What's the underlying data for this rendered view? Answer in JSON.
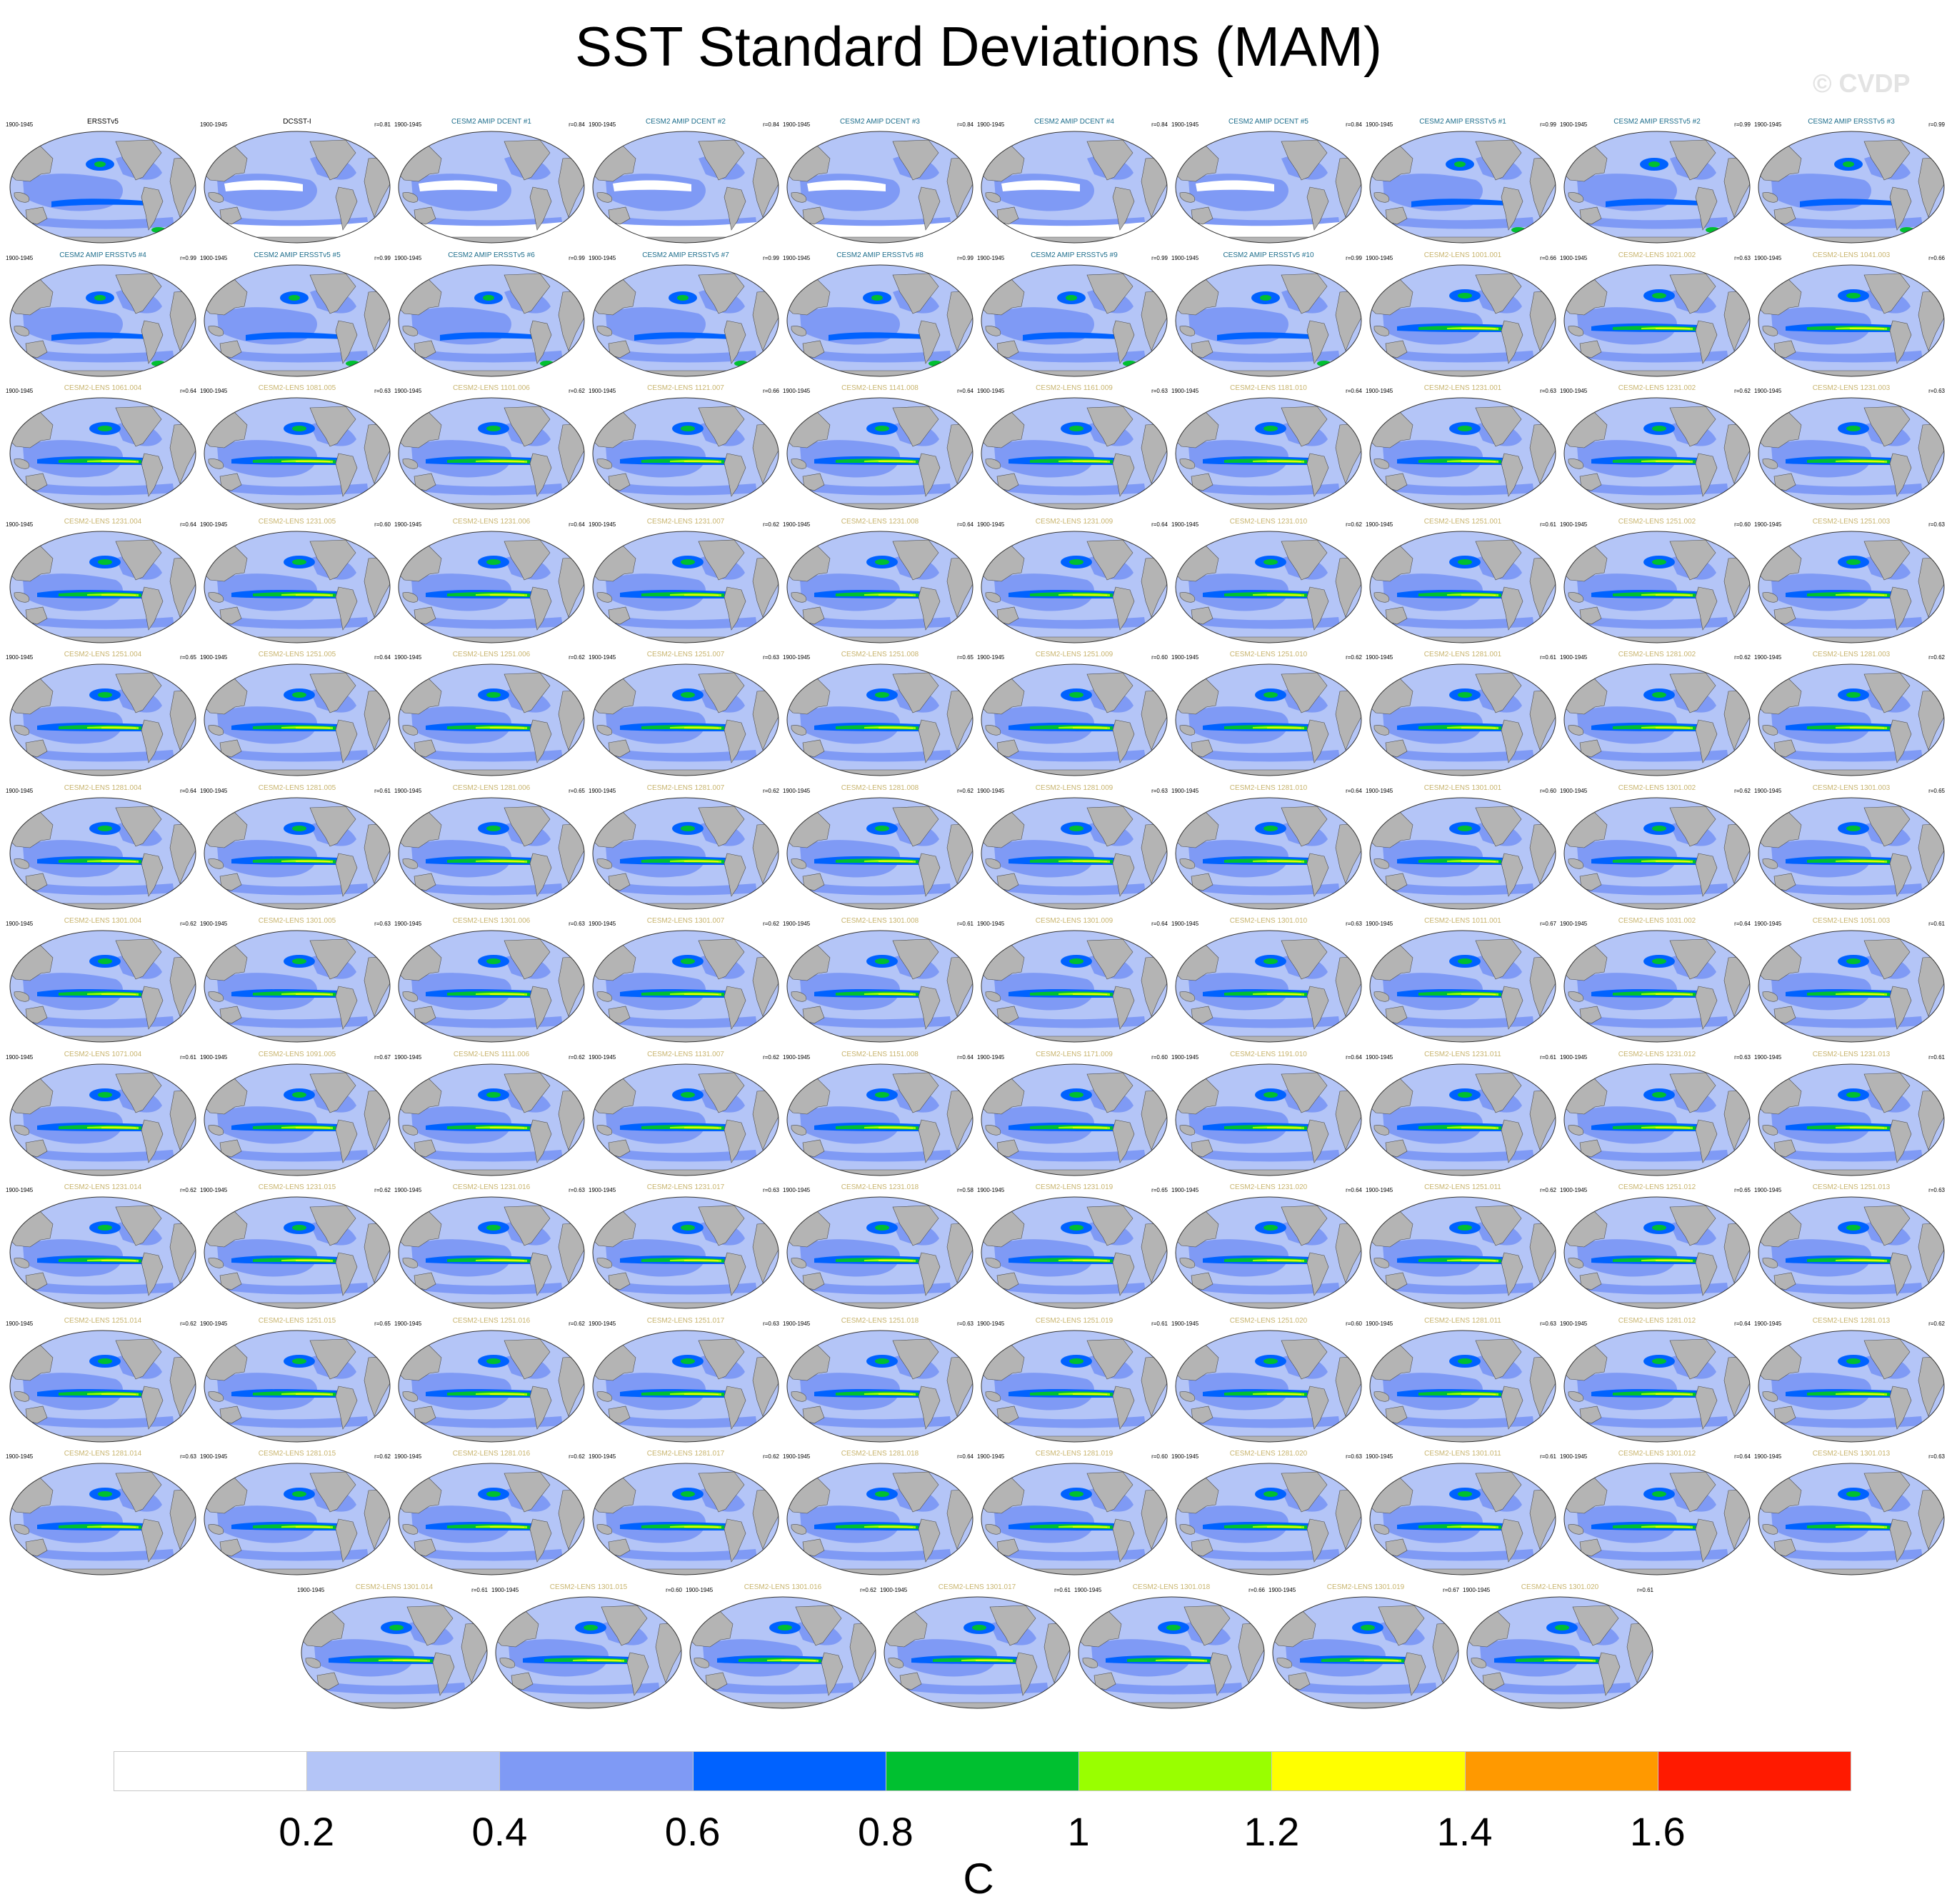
{
  "title": "SST Standard Deviations (MAM)",
  "watermark": "© CVDP",
  "chart_data": {
    "type": "heatmap",
    "title": "SST Standard Deviations (MAM)",
    "units": "C",
    "colorbar": {
      "levels": [
        0.2,
        0.4,
        0.6,
        0.8,
        1,
        1.2,
        1.4,
        1.6
      ],
      "tick_labels": [
        "0.2",
        "0.4",
        "0.6",
        "0.8",
        "1",
        "1.2",
        "1.4",
        "1.6"
      ],
      "colors": [
        "#ffffff",
        "#b4c5f7",
        "#7f9af5",
        "#0062ff",
        "#00c030",
        "#99ff00",
        "#ffff00",
        "#ff9900",
        "#ff1a00"
      ]
    },
    "land_color": "#b4b4b4",
    "title_colors": {
      "obs": "#000000",
      "amip": "#1e6e8c",
      "lens": "#c8b46e"
    },
    "panels": [
      {
        "name": "ERSSTv5",
        "period": "1900-1945",
        "r": "",
        "group": "obs"
      },
      {
        "name": "DCSST-I",
        "period": "1900-1945",
        "r": "r=0.81",
        "group": "obs"
      },
      {
        "name": "CESM2 AMIP DCENT #1",
        "period": "1900-1945",
        "r": "r=0.84",
        "group": "amip"
      },
      {
        "name": "CESM2 AMIP DCENT #2",
        "period": "1900-1945",
        "r": "r=0.84",
        "group": "amip"
      },
      {
        "name": "CESM2 AMIP DCENT #3",
        "period": "1900-1945",
        "r": "r=0.84",
        "group": "amip"
      },
      {
        "name": "CESM2 AMIP DCENT #4",
        "period": "1900-1945",
        "r": "r=0.84",
        "group": "amip"
      },
      {
        "name": "CESM2 AMIP DCENT #5",
        "period": "1900-1945",
        "r": "r=0.84",
        "group": "amip"
      },
      {
        "name": "CESM2 AMIP ERSSTv5 #1",
        "period": "1900-1945",
        "r": "r=0.99",
        "group": "amip"
      },
      {
        "name": "CESM2 AMIP ERSSTv5 #2",
        "period": "1900-1945",
        "r": "r=0.99",
        "group": "amip"
      },
      {
        "name": "CESM2 AMIP ERSSTv5 #3",
        "period": "1900-1945",
        "r": "r=0.99",
        "group": "amip"
      },
      {
        "name": "CESM2 AMIP ERSSTv5 #4",
        "period": "1900-1945",
        "r": "r=0.99",
        "group": "amip"
      },
      {
        "name": "CESM2 AMIP ERSSTv5 #5",
        "period": "1900-1945",
        "r": "r=0.99",
        "group": "amip"
      },
      {
        "name": "CESM2 AMIP ERSSTv5 #6",
        "period": "1900-1945",
        "r": "r=0.99",
        "group": "amip"
      },
      {
        "name": "CESM2 AMIP ERSSTv5 #7",
        "period": "1900-1945",
        "r": "r=0.99",
        "group": "amip"
      },
      {
        "name": "CESM2 AMIP ERSSTv5 #8",
        "period": "1900-1945",
        "r": "r=0.99",
        "group": "amip"
      },
      {
        "name": "CESM2 AMIP ERSSTv5 #9",
        "period": "1900-1945",
        "r": "r=0.99",
        "group": "amip"
      },
      {
        "name": "CESM2 AMIP ERSSTv5 #10",
        "period": "1900-1945",
        "r": "r=0.99",
        "group": "amip"
      },
      {
        "name": "CESM2-LENS 1001.001",
        "period": "1900-1945",
        "r": "r=0.66",
        "group": "lens"
      },
      {
        "name": "CESM2-LENS 1021.002",
        "period": "1900-1945",
        "r": "r=0.63",
        "group": "lens"
      },
      {
        "name": "CESM2-LENS 1041.003",
        "period": "1900-1945",
        "r": "r=0.66",
        "group": "lens"
      },
      {
        "name": "CESM2-LENS 1061.004",
        "period": "1900-1945",
        "r": "r=0.64",
        "group": "lens"
      },
      {
        "name": "CESM2-LENS 1081.005",
        "period": "1900-1945",
        "r": "r=0.63",
        "group": "lens"
      },
      {
        "name": "CESM2-LENS 1101.006",
        "period": "1900-1945",
        "r": "r=0.62",
        "group": "lens"
      },
      {
        "name": "CESM2-LENS 1121.007",
        "period": "1900-1945",
        "r": "r=0.66",
        "group": "lens"
      },
      {
        "name": "CESM2-LENS 1141.008",
        "period": "1900-1945",
        "r": "r=0.64",
        "group": "lens"
      },
      {
        "name": "CESM2-LENS 1161.009",
        "period": "1900-1945",
        "r": "r=0.63",
        "group": "lens"
      },
      {
        "name": "CESM2-LENS 1181.010",
        "period": "1900-1945",
        "r": "r=0.64",
        "group": "lens"
      },
      {
        "name": "CESM2-LENS 1231.001",
        "period": "1900-1945",
        "r": "r=0.63",
        "group": "lens"
      },
      {
        "name": "CESM2-LENS 1231.002",
        "period": "1900-1945",
        "r": "r=0.62",
        "group": "lens"
      },
      {
        "name": "CESM2-LENS 1231.003",
        "period": "1900-1945",
        "r": "r=0.63",
        "group": "lens"
      },
      {
        "name": "CESM2-LENS 1231.004",
        "period": "1900-1945",
        "r": "r=0.64",
        "group": "lens"
      },
      {
        "name": "CESM2-LENS 1231.005",
        "period": "1900-1945",
        "r": "r=0.60",
        "group": "lens"
      },
      {
        "name": "CESM2-LENS 1231.006",
        "period": "1900-1945",
        "r": "r=0.64",
        "group": "lens"
      },
      {
        "name": "CESM2-LENS 1231.007",
        "period": "1900-1945",
        "r": "r=0.62",
        "group": "lens"
      },
      {
        "name": "CESM2-LENS 1231.008",
        "period": "1900-1945",
        "r": "r=0.64",
        "group": "lens"
      },
      {
        "name": "CESM2-LENS 1231.009",
        "period": "1900-1945",
        "r": "r=0.64",
        "group": "lens"
      },
      {
        "name": "CESM2-LENS 1231.010",
        "period": "1900-1945",
        "r": "r=0.62",
        "group": "lens"
      },
      {
        "name": "CESM2-LENS 1251.001",
        "period": "1900-1945",
        "r": "r=0.61",
        "group": "lens"
      },
      {
        "name": "CESM2-LENS 1251.002",
        "period": "1900-1945",
        "r": "r=0.60",
        "group": "lens"
      },
      {
        "name": "CESM2-LENS 1251.003",
        "period": "1900-1945",
        "r": "r=0.63",
        "group": "lens"
      },
      {
        "name": "CESM2-LENS 1251.004",
        "period": "1900-1945",
        "r": "r=0.65",
        "group": "lens"
      },
      {
        "name": "CESM2-LENS 1251.005",
        "period": "1900-1945",
        "r": "r=0.64",
        "group": "lens"
      },
      {
        "name": "CESM2-LENS 1251.006",
        "period": "1900-1945",
        "r": "r=0.62",
        "group": "lens"
      },
      {
        "name": "CESM2-LENS 1251.007",
        "period": "1900-1945",
        "r": "r=0.63",
        "group": "lens"
      },
      {
        "name": "CESM2-LENS 1251.008",
        "period": "1900-1945",
        "r": "r=0.65",
        "group": "lens"
      },
      {
        "name": "CESM2-LENS 1251.009",
        "period": "1900-1945",
        "r": "r=0.60",
        "group": "lens"
      },
      {
        "name": "CESM2-LENS 1251.010",
        "period": "1900-1945",
        "r": "r=0.62",
        "group": "lens"
      },
      {
        "name": "CESM2-LENS 1281.001",
        "period": "1900-1945",
        "r": "r=0.61",
        "group": "lens"
      },
      {
        "name": "CESM2-LENS 1281.002",
        "period": "1900-1945",
        "r": "r=0.62",
        "group": "lens"
      },
      {
        "name": "CESM2-LENS 1281.003",
        "period": "1900-1945",
        "r": "r=0.62",
        "group": "lens"
      },
      {
        "name": "CESM2-LENS 1281.004",
        "period": "1900-1945",
        "r": "r=0.64",
        "group": "lens"
      },
      {
        "name": "CESM2-LENS 1281.005",
        "period": "1900-1945",
        "r": "r=0.61",
        "group": "lens"
      },
      {
        "name": "CESM2-LENS 1281.006",
        "period": "1900-1945",
        "r": "r=0.65",
        "group": "lens"
      },
      {
        "name": "CESM2-LENS 1281.007",
        "period": "1900-1945",
        "r": "r=0.62",
        "group": "lens"
      },
      {
        "name": "CESM2-LENS 1281.008",
        "period": "1900-1945",
        "r": "r=0.62",
        "group": "lens"
      },
      {
        "name": "CESM2-LENS 1281.009",
        "period": "1900-1945",
        "r": "r=0.63",
        "group": "lens"
      },
      {
        "name": "CESM2-LENS 1281.010",
        "period": "1900-1945",
        "r": "r=0.64",
        "group": "lens"
      },
      {
        "name": "CESM2-LENS 1301.001",
        "period": "1900-1945",
        "r": "r=0.60",
        "group": "lens"
      },
      {
        "name": "CESM2-LENS 1301.002",
        "period": "1900-1945",
        "r": "r=0.62",
        "group": "lens"
      },
      {
        "name": "CESM2-LENS 1301.003",
        "period": "1900-1945",
        "r": "r=0.65",
        "group": "lens"
      },
      {
        "name": "CESM2-LENS 1301.004",
        "period": "1900-1945",
        "r": "r=0.62",
        "group": "lens"
      },
      {
        "name": "CESM2-LENS 1301.005",
        "period": "1900-1945",
        "r": "r=0.63",
        "group": "lens"
      },
      {
        "name": "CESM2-LENS 1301.006",
        "period": "1900-1945",
        "r": "r=0.63",
        "group": "lens"
      },
      {
        "name": "CESM2-LENS 1301.007",
        "period": "1900-1945",
        "r": "r=0.62",
        "group": "lens"
      },
      {
        "name": "CESM2-LENS 1301.008",
        "period": "1900-1945",
        "r": "r=0.61",
        "group": "lens"
      },
      {
        "name": "CESM2-LENS 1301.009",
        "period": "1900-1945",
        "r": "r=0.64",
        "group": "lens"
      },
      {
        "name": "CESM2-LENS 1301.010",
        "period": "1900-1945",
        "r": "r=0.63",
        "group": "lens"
      },
      {
        "name": "CESM2-LENS 1011.001",
        "period": "1900-1945",
        "r": "r=0.67",
        "group": "lens"
      },
      {
        "name": "CESM2-LENS 1031.002",
        "period": "1900-1945",
        "r": "r=0.64",
        "group": "lens"
      },
      {
        "name": "CESM2-LENS 1051.003",
        "period": "1900-1945",
        "r": "r=0.61",
        "group": "lens"
      },
      {
        "name": "CESM2-LENS 1071.004",
        "period": "1900-1945",
        "r": "r=0.61",
        "group": "lens"
      },
      {
        "name": "CESM2-LENS 1091.005",
        "period": "1900-1945",
        "r": "r=0.67",
        "group": "lens"
      },
      {
        "name": "CESM2-LENS 1111.006",
        "period": "1900-1945",
        "r": "r=0.62",
        "group": "lens"
      },
      {
        "name": "CESM2-LENS 1131.007",
        "period": "1900-1945",
        "r": "r=0.62",
        "group": "lens"
      },
      {
        "name": "CESM2-LENS 1151.008",
        "period": "1900-1945",
        "r": "r=0.64",
        "group": "lens"
      },
      {
        "name": "CESM2-LENS 1171.009",
        "period": "1900-1945",
        "r": "r=0.60",
        "group": "lens"
      },
      {
        "name": "CESM2-LENS 1191.010",
        "period": "1900-1945",
        "r": "r=0.64",
        "group": "lens"
      },
      {
        "name": "CESM2-LENS 1231.011",
        "period": "1900-1945",
        "r": "r=0.61",
        "group": "lens"
      },
      {
        "name": "CESM2-LENS 1231.012",
        "period": "1900-1945",
        "r": "r=0.63",
        "group": "lens"
      },
      {
        "name": "CESM2-LENS 1231.013",
        "period": "1900-1945",
        "r": "r=0.61",
        "group": "lens"
      },
      {
        "name": "CESM2-LENS 1231.014",
        "period": "1900-1945",
        "r": "r=0.62",
        "group": "lens"
      },
      {
        "name": "CESM2-LENS 1231.015",
        "period": "1900-1945",
        "r": "r=0.62",
        "group": "lens"
      },
      {
        "name": "CESM2-LENS 1231.016",
        "period": "1900-1945",
        "r": "r=0.63",
        "group": "lens"
      },
      {
        "name": "CESM2-LENS 1231.017",
        "period": "1900-1945",
        "r": "r=0.63",
        "group": "lens"
      },
      {
        "name": "CESM2-LENS 1231.018",
        "period": "1900-1945",
        "r": "r=0.58",
        "group": "lens"
      },
      {
        "name": "CESM2-LENS 1231.019",
        "period": "1900-1945",
        "r": "r=0.65",
        "group": "lens"
      },
      {
        "name": "CESM2-LENS 1231.020",
        "period": "1900-1945",
        "r": "r=0.64",
        "group": "lens"
      },
      {
        "name": "CESM2-LENS 1251.011",
        "period": "1900-1945",
        "r": "r=0.62",
        "group": "lens"
      },
      {
        "name": "CESM2-LENS 1251.012",
        "period": "1900-1945",
        "r": "r=0.65",
        "group": "lens"
      },
      {
        "name": "CESM2-LENS 1251.013",
        "period": "1900-1945",
        "r": "r=0.63",
        "group": "lens"
      },
      {
        "name": "CESM2-LENS 1251.014",
        "period": "1900-1945",
        "r": "r=0.62",
        "group": "lens"
      },
      {
        "name": "CESM2-LENS 1251.015",
        "period": "1900-1945",
        "r": "r=0.65",
        "group": "lens"
      },
      {
        "name": "CESM2-LENS 1251.016",
        "period": "1900-1945",
        "r": "r=0.62",
        "group": "lens"
      },
      {
        "name": "CESM2-LENS 1251.017",
        "period": "1900-1945",
        "r": "r=0.63",
        "group": "lens"
      },
      {
        "name": "CESM2-LENS 1251.018",
        "period": "1900-1945",
        "r": "r=0.63",
        "group": "lens"
      },
      {
        "name": "CESM2-LENS 1251.019",
        "period": "1900-1945",
        "r": "r=0.61",
        "group": "lens"
      },
      {
        "name": "CESM2-LENS 1251.020",
        "period": "1900-1945",
        "r": "r=0.60",
        "group": "lens"
      },
      {
        "name": "CESM2-LENS 1281.011",
        "period": "1900-1945",
        "r": "r=0.63",
        "group": "lens"
      },
      {
        "name": "CESM2-LENS 1281.012",
        "period": "1900-1945",
        "r": "r=0.64",
        "group": "lens"
      },
      {
        "name": "CESM2-LENS 1281.013",
        "period": "1900-1945",
        "r": "r=0.62",
        "group": "lens"
      },
      {
        "name": "CESM2-LENS 1281.014",
        "period": "1900-1945",
        "r": "r=0.63",
        "group": "lens"
      },
      {
        "name": "CESM2-LENS 1281.015",
        "period": "1900-1945",
        "r": "r=0.62",
        "group": "lens"
      },
      {
        "name": "CESM2-LENS 1281.016",
        "period": "1900-1945",
        "r": "r=0.62",
        "group": "lens"
      },
      {
        "name": "CESM2-LENS 1281.017",
        "period": "1900-1945",
        "r": "r=0.62",
        "group": "lens"
      },
      {
        "name": "CESM2-LENS 1281.018",
        "period": "1900-1945",
        "r": "r=0.64",
        "group": "lens"
      },
      {
        "name": "CESM2-LENS 1281.019",
        "period": "1900-1945",
        "r": "r=0.60",
        "group": "lens"
      },
      {
        "name": "CESM2-LENS 1281.020",
        "period": "1900-1945",
        "r": "r=0.63",
        "group": "lens"
      },
      {
        "name": "CESM2-LENS 1301.011",
        "period": "1900-1945",
        "r": "r=0.61",
        "group": "lens"
      },
      {
        "name": "CESM2-LENS 1301.012",
        "period": "1900-1945",
        "r": "r=0.64",
        "group": "lens"
      },
      {
        "name": "CESM2-LENS 1301.013",
        "period": "1900-1945",
        "r": "r=0.63",
        "group": "lens"
      },
      {
        "name": "CESM2-LENS 1301.014",
        "period": "1900-1945",
        "r": "r=0.61",
        "group": "lens"
      },
      {
        "name": "CESM2-LENS 1301.015",
        "period": "1900-1945",
        "r": "r=0.60",
        "group": "lens"
      },
      {
        "name": "CESM2-LENS 1301.016",
        "period": "1900-1945",
        "r": "r=0.62",
        "group": "lens"
      },
      {
        "name": "CESM2-LENS 1301.017",
        "period": "1900-1945",
        "r": "r=0.61",
        "group": "lens"
      },
      {
        "name": "CESM2-LENS 1301.018",
        "period": "1900-1945",
        "r": "r=0.66",
        "group": "lens"
      },
      {
        "name": "CESM2-LENS 1301.019",
        "period": "1900-1945",
        "r": "r=0.67",
        "group": "lens"
      },
      {
        "name": "CESM2-LENS 1301.020",
        "period": "1900-1945",
        "r": "r=0.61",
        "group": "lens"
      }
    ]
  }
}
